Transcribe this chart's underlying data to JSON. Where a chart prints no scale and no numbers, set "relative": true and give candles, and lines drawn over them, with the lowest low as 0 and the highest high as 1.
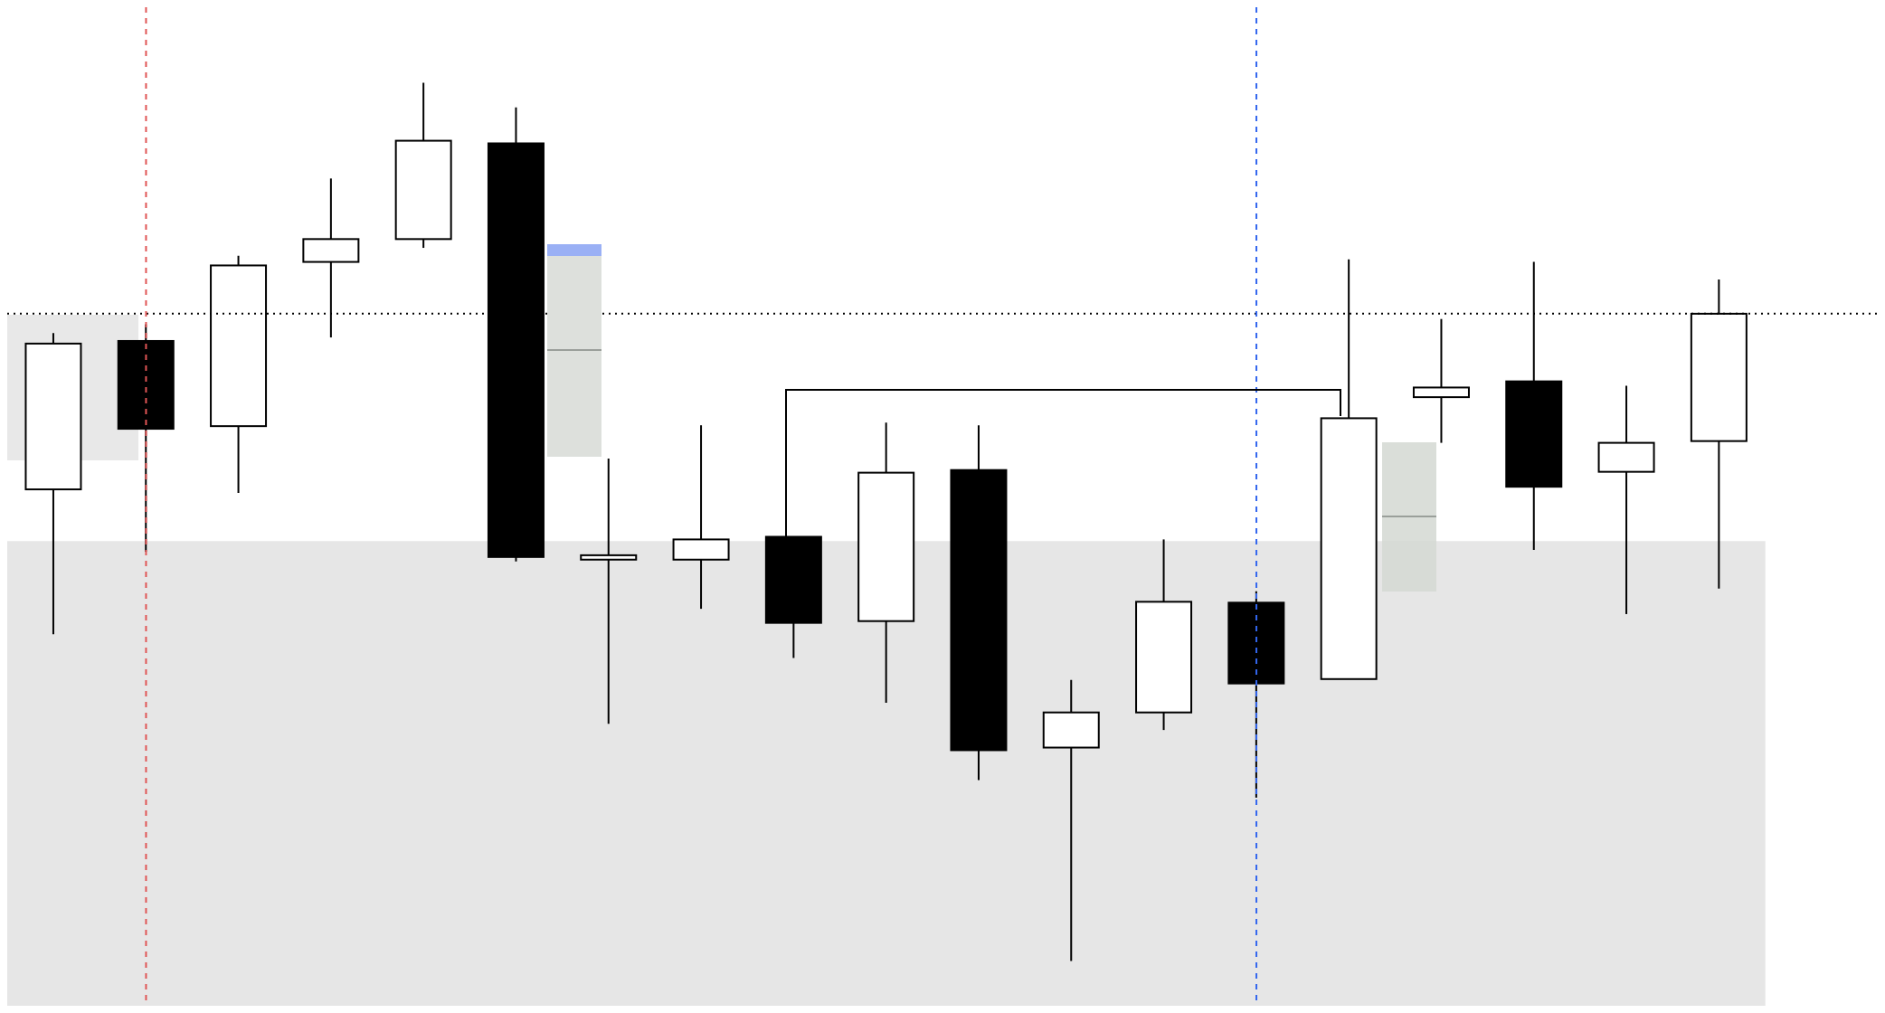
{
  "chart_data": {
    "type": "candlestick",
    "relative": true,
    "categories": [
      null,
      null,
      null,
      null,
      null,
      null,
      null,
      null,
      null,
      null,
      null,
      null,
      null,
      null,
      null,
      null,
      null,
      null,
      null
    ],
    "ohlc": [
      [
        0.537,
        0.715,
        0.372,
        0.703
      ],
      [
        0.706,
        0.725,
        0.466,
        0.606
      ],
      [
        0.609,
        0.803,
        0.533,
        0.792
      ],
      [
        0.796,
        0.891,
        0.71,
        0.822
      ],
      [
        0.822,
        1,
        0.812,
        0.934
      ],
      [
        0.931,
        0.972,
        0.455,
        0.46
      ],
      [
        0.457,
        0.572,
        0.27,
        0.462
      ],
      [
        0.457,
        0.61,
        0.401,
        0.48
      ],
      [
        0.483,
        0.483,
        0.345,
        0.385
      ],
      [
        0.387,
        0.613,
        0.294,
        0.556
      ],
      [
        0.559,
        0.61,
        0.206,
        0.24
      ],
      [
        0.243,
        0.32,
        0,
        0.283
      ],
      [
        0.283,
        0.48,
        0.263,
        0.409
      ],
      [
        0.408,
        0.421,
        0.186,
        0.316
      ],
      [
        0.321,
        0.799,
        0.321,
        0.618
      ],
      [
        0.642,
        0.731,
        0.59,
        0.653
      ],
      [
        0.66,
        0.796,
        0.468,
        0.54
      ],
      [
        0.557,
        0.655,
        0.395,
        0.59
      ],
      [
        0.592,
        0.776,
        0.424,
        0.737
      ]
    ],
    "ref_lines": [
      {
        "axis": "y",
        "value": 0.737,
        "color": "#000000",
        "line_style": "dotted"
      }
    ],
    "bands": [
      {
        "axis": "y",
        "from": 0,
        "to": 0.478,
        "color": "#e6e6e6"
      }
    ]
  }
}
